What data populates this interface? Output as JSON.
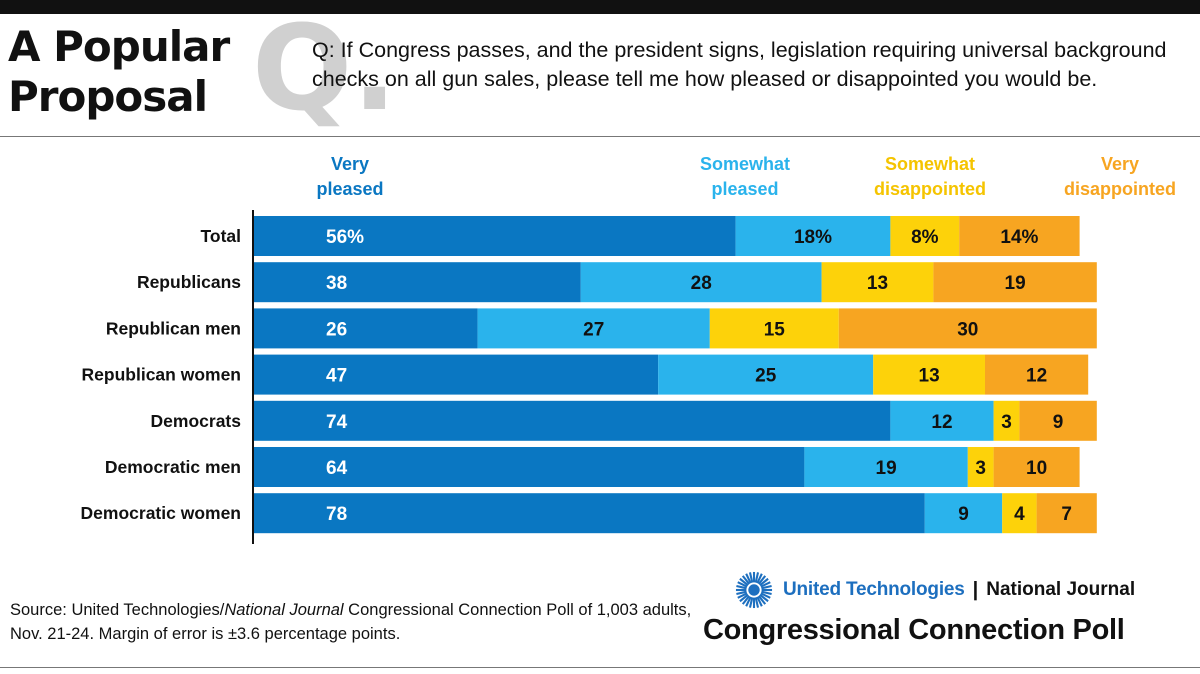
{
  "header": {
    "title_line1": "A Popular",
    "title_line2": "Proposal",
    "q_letter": "Q.",
    "question": "Q: If Congress passes, and the president signs, legislation requiring universal background checks on all gun sales, please tell me how pleased or disappointed you would be."
  },
  "legend": {
    "very_pleased": "Very pleased",
    "somewhat_pleased": "Somewhat pleased",
    "somewhat_disappointed": "Somewhat disappointed",
    "very_disappointed": "Very disappointed"
  },
  "colors": {
    "very_pleased": "#0a77c2",
    "somewhat_pleased": "#2ab3ec",
    "somewhat_disappointed": "#fdd20a",
    "very_disappointed": "#f7a521",
    "dark_bar_label": "#ffffff",
    "light_bar_label": "#111111"
  },
  "chart_data": {
    "type": "bar",
    "orientation": "horizontal",
    "stacked": true,
    "title": "A Popular Proposal",
    "categories": [
      "Total",
      "Republicans",
      "Republican men",
      "Republican women",
      "Democrats",
      "Democratic men",
      "Democratic women"
    ],
    "series": [
      {
        "name": "Very pleased",
        "values": [
          56,
          38,
          26,
          47,
          74,
          64,
          78
        ]
      },
      {
        "name": "Somewhat pleased",
        "values": [
          18,
          28,
          27,
          25,
          12,
          19,
          9
        ]
      },
      {
        "name": "Somewhat disappointed",
        "values": [
          8,
          13,
          15,
          13,
          3,
          3,
          4
        ]
      },
      {
        "name": "Very disappointed",
        "values": [
          14,
          19,
          30,
          12,
          9,
          10,
          7
        ]
      }
    ],
    "data_labels": [
      [
        "56%",
        "18%",
        "8%",
        "14%"
      ],
      [
        "38",
        "28",
        "13",
        "19"
      ],
      [
        "26",
        "27",
        "15",
        "30"
      ],
      [
        "47",
        "25",
        "13",
        "12"
      ],
      [
        "74",
        "12",
        "3",
        "9"
      ],
      [
        "64",
        "19",
        "3",
        "10"
      ],
      [
        "78",
        "9",
        "4",
        "7"
      ]
    ],
    "unit": "%",
    "xlim": [
      0,
      100
    ],
    "grid": false,
    "legend_position": "top"
  },
  "footer": {
    "source_prefix": "Source: United Technologies/",
    "source_italic": "National Journal",
    "source_suffix": " Congressional Connection Poll of 1,003 adults, Nov. 21-24. Margin of error is ±3.6 percentage points.",
    "sponsor": "United Technologies",
    "separator": "|",
    "publisher": "National Journal",
    "poll_name": "Congressional Connection Poll",
    "logo_icon": "united-technologies-logo"
  }
}
